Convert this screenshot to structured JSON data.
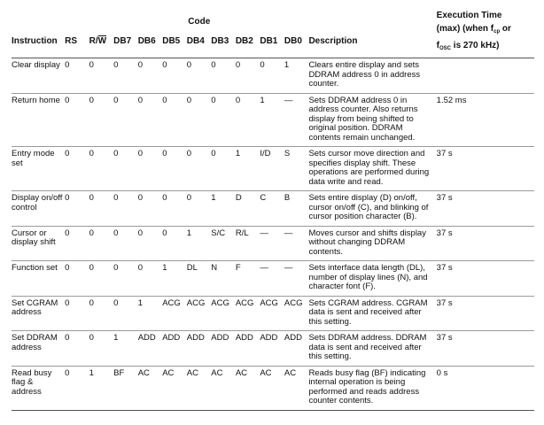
{
  "header": {
    "code": "Code",
    "exec_line1": "Execution Time",
    "exec_line2_a": "(max) (when f",
    "exec_line2_sub": "cp",
    "exec_line2_b": " or",
    "exec_line3_a": "f",
    "exec_line3_sub": "OSC",
    "exec_line3_b": " is 270 kHz)",
    "instruction": "Instruction",
    "rs": "RS",
    "rw_r": "R/",
    "rw_w": "W",
    "db7": "DB7",
    "db6": "DB6",
    "db5": "DB5",
    "db4": "DB4",
    "db3": "DB3",
    "db2": "DB2",
    "db1": "DB1",
    "db0": "DB0",
    "description": "Description"
  },
  "rows": [
    {
      "instr": "Clear display",
      "rs": "0",
      "rw": "0",
      "db7": "0",
      "db6": "0",
      "db5": "0",
      "db4": "0",
      "db3": "0",
      "db2": "0",
      "db1": "0",
      "db0": "1",
      "desc": "Clears entire display and sets DDRAM address 0 in address counter.",
      "exec": ""
    },
    {
      "instr": "Return home",
      "rs": "0",
      "rw": "0",
      "db7": "0",
      "db6": "0",
      "db5": "0",
      "db4": "0",
      "db3": "0",
      "db2": "0",
      "db1": "1",
      "db0": "—",
      "desc": "Sets DDRAM address 0 in address counter. Also returns display from being shifted to original position. DDRAM contents remain unchanged.",
      "exec": "1.52 ms"
    },
    {
      "instr": "Entry mode set",
      "rs": "0",
      "rw": "0",
      "db7": "0",
      "db6": "0",
      "db5": "0",
      "db4": "0",
      "db3": "0",
      "db2": "1",
      "db1": "I/D",
      "db0": "S",
      "desc": "Sets cursor move direction and specifies display shift. These operations are performed during data write and read.",
      "exec": "37   s"
    },
    {
      "instr": "Display on/off control",
      "rs": "0",
      "rw": "0",
      "db7": "0",
      "db6": "0",
      "db5": "0",
      "db4": "0",
      "db3": "1",
      "db2": "D",
      "db1": "C",
      "db0": "B",
      "desc": "Sets entire display (D) on/off, cursor on/off (C), and blinking of cursor position character (B).",
      "exec": "37   s"
    },
    {
      "instr": "Cursor or display shift",
      "rs": "0",
      "rw": "0",
      "db7": "0",
      "db6": "0",
      "db5": "0",
      "db4": "1",
      "db3": "S/C",
      "db2": "R/L",
      "db1": "—",
      "db0": "—",
      "desc": "Moves cursor and shifts display without changing DDRAM contents.",
      "exec": "37   s"
    },
    {
      "instr": "Function set",
      "rs": "0",
      "rw": "0",
      "db7": "0",
      "db6": "0",
      "db5": "1",
      "db4": "DL",
      "db3": "N",
      "db2": "F",
      "db1": "—",
      "db0": "—",
      "desc": "Sets interface data length (DL), number of display lines (N), and character font (F).",
      "exec": "37   s"
    },
    {
      "instr": "Set CGRAM address",
      "rs": "0",
      "rw": "0",
      "db7": "0",
      "db6": "1",
      "db5": "ACG",
      "db4": "ACG",
      "db3": "ACG",
      "db2": "ACG",
      "db1": "ACG",
      "db0": "ACG",
      "desc": "Sets CGRAM address. CGRAM data is sent and received after this setting.",
      "exec": "37   s"
    },
    {
      "instr": "Set DDRAM address",
      "rs": "0",
      "rw": "0",
      "db7": "1",
      "db6": "ADD",
      "db5": "ADD",
      "db4": "ADD",
      "db3": "ADD",
      "db2": "ADD",
      "db1": "ADD",
      "db0": "ADD",
      "desc": "Sets DDRAM address. DDRAM data is sent and received after this setting.",
      "exec": "37   s"
    },
    {
      "instr": "Read busy flag & address",
      "rs": "0",
      "rw": "1",
      "db7": "BF",
      "db6": "AC",
      "db5": "AC",
      "db4": "AC",
      "db3": "AC",
      "db2": "AC",
      "db1": "AC",
      "db0": "AC",
      "desc": "Reads busy flag (BF) indicating internal operation is being performed and reads address counter contents.",
      "exec": "0   s"
    }
  ]
}
